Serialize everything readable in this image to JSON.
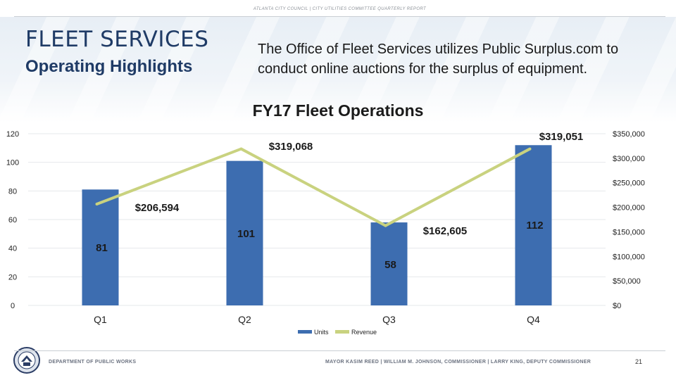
{
  "header": {
    "org_line": "ATLANTA CITY COUNCIL | CITY UTILITIES COMMITTEE QUARTERLY REPORT",
    "title": "FLEET SERVICES",
    "subtitle": "Operating Highlights",
    "description": "The Office of Fleet Services utilizes Public Surplus.com to conduct online auctions for the surplus of equipment."
  },
  "chart_data": {
    "type": "bar",
    "title": "FY17 Fleet Operations",
    "categories": [
      "Q1",
      "Q2",
      "Q3",
      "Q4"
    ],
    "series": [
      {
        "name": "Units",
        "type": "bar",
        "axis": "left",
        "values": [
          81,
          101,
          58,
          112
        ],
        "labels": [
          "81",
          "101",
          "58",
          "112"
        ]
      },
      {
        "name": "Revenue",
        "type": "line",
        "axis": "right",
        "values": [
          206594,
          319068,
          162605,
          319051
        ],
        "labels": [
          "$206,594",
          "$319,068",
          "$162,605",
          "$319,051"
        ]
      }
    ],
    "y_left": {
      "min": 0,
      "max": 120,
      "ticks": [
        "0",
        "20",
        "40",
        "60",
        "80",
        "100",
        "120"
      ],
      "tick_values": [
        0,
        20,
        40,
        60,
        80,
        100,
        120
      ]
    },
    "y_right": {
      "min": 0,
      "max": 350000,
      "ticks": [
        "$0",
        "$50,000",
        "$100,000",
        "$150,000",
        "$200,000",
        "$250,000",
        "$300,000",
        "$350,000"
      ],
      "tick_values": [
        0,
        50000,
        100000,
        150000,
        200000,
        250000,
        300000,
        350000
      ]
    },
    "legend": [
      "Units",
      "Revenue"
    ],
    "legend_position": "bottom",
    "colors": {
      "bar": "#3d6db0",
      "line": "#c9d27f"
    }
  },
  "footer": {
    "department": "DEPARTMENT OF PUBLIC WORKS",
    "officials": "MAYOR KASIM REED  |  WILLIAM M. JOHNSON, COMMISSIONER  |  LARRY KING, DEPUTY COMMISSIONER",
    "page_number": "21",
    "seal_icon": "city-seal-icon"
  }
}
